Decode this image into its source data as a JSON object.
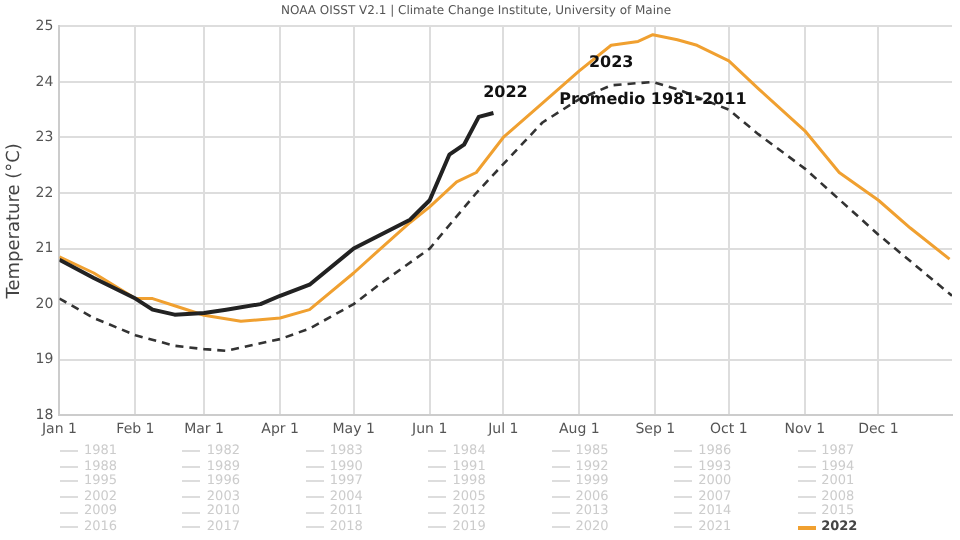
{
  "chart_data": {
    "type": "line",
    "title": "NOAA OISST V2.1 | Climate Change Institute, University of Maine",
    "ylabel": "Temperature (°C)",
    "xlim": [
      "--01-01",
      "--12-31"
    ],
    "xticks": [
      {
        "value": "--01-01",
        "label": "Jan 1"
      },
      {
        "value": "--02-01",
        "label": "Feb 1"
      },
      {
        "value": "--03-01",
        "label": "Mar 1"
      },
      {
        "value": "--04-01",
        "label": "Apr 1"
      },
      {
        "value": "--05-01",
        "label": "May 1"
      },
      {
        "value": "--06-01",
        "label": "Jun 1"
      },
      {
        "value": "--07-01",
        "label": "Jul 1"
      },
      {
        "value": "--08-01",
        "label": "Aug 1"
      },
      {
        "value": "--09-01",
        "label": "Sep 1"
      },
      {
        "value": "--10-01",
        "label": "Oct 1"
      },
      {
        "value": "--11-01",
        "label": "Nov 1"
      },
      {
        "value": "--12-01",
        "label": "Dec 1"
      }
    ],
    "ylim": [
      18,
      25
    ],
    "yticks": [
      18,
      19,
      20,
      21,
      22,
      23,
      24,
      25
    ],
    "grid": true,
    "legend": "bottom",
    "marker": "none",
    "annotations": [
      {
        "text": "2022",
        "x": "--06-27",
        "y": 23.44
      },
      {
        "text": "2023",
        "x": "--08-14",
        "y": 24.66
      },
      {
        "text": "Promedio 1981-2011",
        "x": "--08-31",
        "y": 24.0
      }
    ],
    "series": [
      {
        "color": "#222222",
        "x": [
          "--01-01",
          "--01-15",
          "--02-01",
          "--02-08",
          "--02-17",
          "--03-01",
          "--03-10",
          "--03-24",
          "--04-01",
          "--04-13",
          "--05-01",
          "--05-12",
          "--05-24",
          "--06-01",
          "--06-09",
          "--06-15",
          "--06-21",
          "--06-27"
        ],
        "values": [
          20.8,
          20.47,
          20.1,
          19.9,
          19.81,
          19.84,
          19.9,
          20.0,
          20.15,
          20.35,
          21.0,
          21.25,
          21.52,
          21.87,
          22.69,
          22.87,
          23.37,
          23.44
        ]
      },
      {
        "color": "#333333",
        "line_style": "dashed",
        "x": [
          "--01-01",
          "--01-15",
          "--02-01",
          "--02-17",
          "--03-01",
          "--03-10",
          "--04-01",
          "--04-13",
          "--05-01",
          "--05-12",
          "--06-01",
          "--06-20",
          "--07-01",
          "--07-17",
          "--08-01",
          "--08-14",
          "--08-31",
          "--09-10",
          "--10-01",
          "--10-13",
          "--11-01",
          "--12-01",
          "--12-31"
        ],
        "values": [
          20.1,
          19.75,
          19.44,
          19.25,
          19.19,
          19.16,
          19.37,
          19.56,
          20.0,
          20.37,
          21.0,
          22.0,
          22.52,
          23.27,
          23.69,
          23.94,
          24.0,
          23.87,
          23.5,
          23.06,
          22.44,
          21.25,
          20.15
        ]
      },
      {
        "name": "1981",
        "color": "#dddddd"
      },
      {
        "name": "1982",
        "color": "#dddddd"
      },
      {
        "name": "1983",
        "color": "#dddddd"
      },
      {
        "name": "1984",
        "color": "#dddddd"
      },
      {
        "name": "1985",
        "color": "#dddddd"
      },
      {
        "name": "1986",
        "color": "#dddddd"
      },
      {
        "name": "1987",
        "color": "#dddddd"
      },
      {
        "name": "1988",
        "color": "#dddddd"
      },
      {
        "name": "1989",
        "color": "#dddddd"
      },
      {
        "name": "1990",
        "color": "#dddddd"
      },
      {
        "name": "1991",
        "color": "#dddddd"
      },
      {
        "name": "1992",
        "color": "#dddddd"
      },
      {
        "name": "1993",
        "color": "#dddddd"
      },
      {
        "name": "1994",
        "color": "#dddddd"
      },
      {
        "name": "1995",
        "color": "#dddddd"
      },
      {
        "name": "1996",
        "color": "#dddddd"
      },
      {
        "name": "1997",
        "color": "#dddddd"
      },
      {
        "name": "1998",
        "color": "#dddddd"
      },
      {
        "name": "1999",
        "color": "#dddddd"
      },
      {
        "name": "2000",
        "color": "#dddddd"
      },
      {
        "name": "2001",
        "color": "#dddddd"
      },
      {
        "name": "2002",
        "color": "#dddddd"
      },
      {
        "name": "2003",
        "color": "#dddddd"
      },
      {
        "name": "2004",
        "color": "#dddddd"
      },
      {
        "name": "2005",
        "color": "#dddddd"
      },
      {
        "name": "2006",
        "color": "#dddddd"
      },
      {
        "name": "2007",
        "color": "#dddddd"
      },
      {
        "name": "2008",
        "color": "#dddddd"
      },
      {
        "name": "2009",
        "color": "#dddddd"
      },
      {
        "name": "2010",
        "color": "#dddddd"
      },
      {
        "name": "2011",
        "color": "#dddddd"
      },
      {
        "name": "2012",
        "color": "#dddddd"
      },
      {
        "name": "2013",
        "color": "#dddddd"
      },
      {
        "name": "2014",
        "color": "#dddddd"
      },
      {
        "name": "2015",
        "color": "#dddddd"
      },
      {
        "name": "2016",
        "color": "#dddddd"
      },
      {
        "name": "2017",
        "color": "#dddddd"
      },
      {
        "name": "2018",
        "color": "#dddddd"
      },
      {
        "name": "2019",
        "color": "#dddddd"
      },
      {
        "name": "2020",
        "color": "#dddddd"
      },
      {
        "name": "2021",
        "color": "#dddddd"
      },
      {
        "name": "2022",
        "color": "#f0a030",
        "x": [
          "--01-01",
          "--01-15",
          "--02-01",
          "--02-08",
          "--02-17",
          "--03-01",
          "--03-16",
          "--04-01",
          "--04-13",
          "--05-01",
          "--05-12",
          "--05-24",
          "--06-01",
          "--06-12",
          "--06-20",
          "--07-01",
          "--07-17",
          "--08-01",
          "--08-14",
          "--08-25",
          "--08-31",
          "--09-10",
          "--09-18",
          "--10-01",
          "--10-13",
          "--11-01",
          "--11-15",
          "--12-01",
          "--12-14",
          "--12-30"
        ],
        "values": [
          20.85,
          20.56,
          20.1,
          20.1,
          19.97,
          19.8,
          19.69,
          19.75,
          19.9,
          20.56,
          21.0,
          21.47,
          21.75,
          22.2,
          22.37,
          23.0,
          23.62,
          24.2,
          24.66,
          24.73,
          24.85,
          24.76,
          24.66,
          24.38,
          23.88,
          23.12,
          22.37,
          21.87,
          21.37,
          20.81
        ]
      }
    ]
  }
}
